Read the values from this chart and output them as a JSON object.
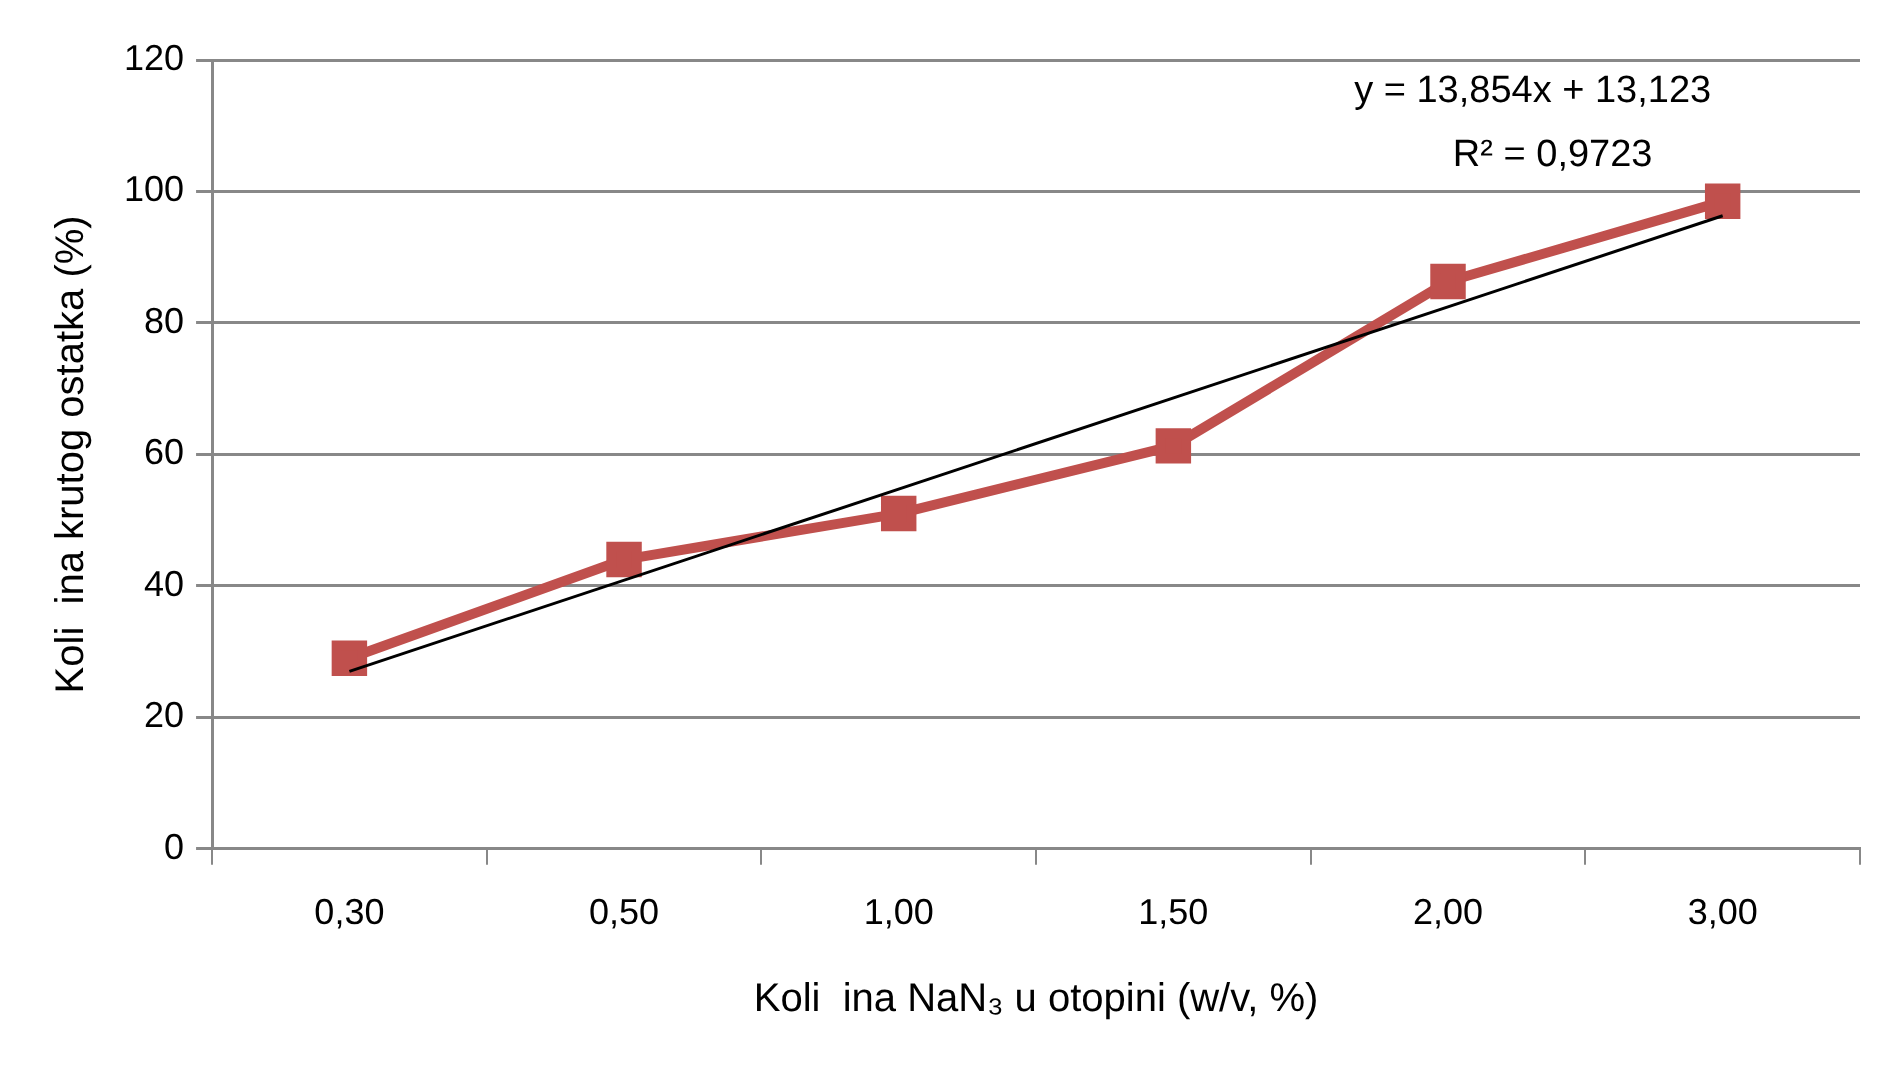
{
  "chart_data": {
    "type": "line",
    "xlabel": "Koli  ina NaN₃ u otopini (w/v, %)",
    "ylabel": "Koli  ina krutog ostatka (%)",
    "categories": [
      "0,30",
      "0,50",
      "1,00",
      "1,50",
      "2,00",
      "3,00"
    ],
    "series": [
      {
        "color": "#c0504d",
        "values": [
          29,
          44,
          51,
          61.3,
          86.3,
          98.5
        ],
        "marker": "square"
      },
      {
        "type": "line",
        "x": [
          "0,30",
          "3,00"
        ],
        "values": [
          27,
          96.3
        ],
        "color": "#000000",
        "marker": "none"
      }
    ],
    "ylim": [
      0,
      120
    ],
    "yticks": [
      0,
      20,
      40,
      60,
      80,
      100,
      120
    ],
    "grid": "y",
    "legend": false,
    "annotations": [
      "y = 13,854x + 13,123",
      "R² = 0,9723"
    ]
  }
}
